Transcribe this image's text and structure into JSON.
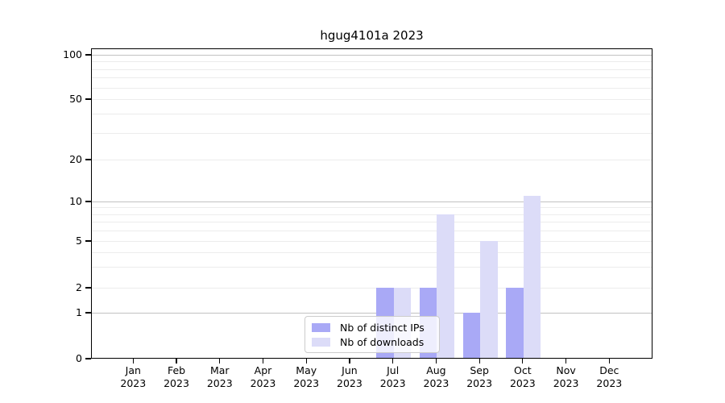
{
  "title": "hgug4101a 2023",
  "chart_data": {
    "type": "bar",
    "title": "hgug4101a 2023",
    "categories": [
      "Jan 2023",
      "Feb 2023",
      "Mar 2023",
      "Apr 2023",
      "May 2023",
      "Jun 2023",
      "Jul 2023",
      "Aug 2023",
      "Sep 2023",
      "Oct 2023",
      "Nov 2023",
      "Dec 2023"
    ],
    "series": [
      {
        "name": "Nb of distinct IPs",
        "color": "#a9a9f6",
        "values": [
          0,
          0,
          0,
          0,
          0,
          0,
          2,
          2,
          1,
          2,
          0,
          0
        ]
      },
      {
        "name": "Nb of downloads",
        "color": "#dcdcf8",
        "values": [
          0,
          0,
          0,
          0,
          0,
          0,
          2,
          8,
          5,
          11,
          0,
          0
        ]
      }
    ],
    "xlabel": "",
    "ylabel": "",
    "yscale": "log-like",
    "ylim": [
      0,
      110
    ],
    "y_ticks": [
      0,
      1,
      2,
      5,
      10,
      20,
      50,
      100
    ],
    "y_minor_gridlines": [
      2,
      3,
      4,
      5,
      6,
      7,
      8,
      9,
      20,
      30,
      40,
      50,
      60,
      70,
      80,
      90
    ],
    "y_major_gridlines": [
      1,
      10,
      100
    ],
    "grid": true,
    "legend_position": "inside bottom-center"
  },
  "colors": {
    "bar_distinct_ips": "#a9a9f6",
    "bar_downloads": "#dcdcf8",
    "grid_minor": "#ececec",
    "grid_major": "#c2c2c2",
    "spine": "#000000",
    "legend_border": "#cccccc"
  }
}
